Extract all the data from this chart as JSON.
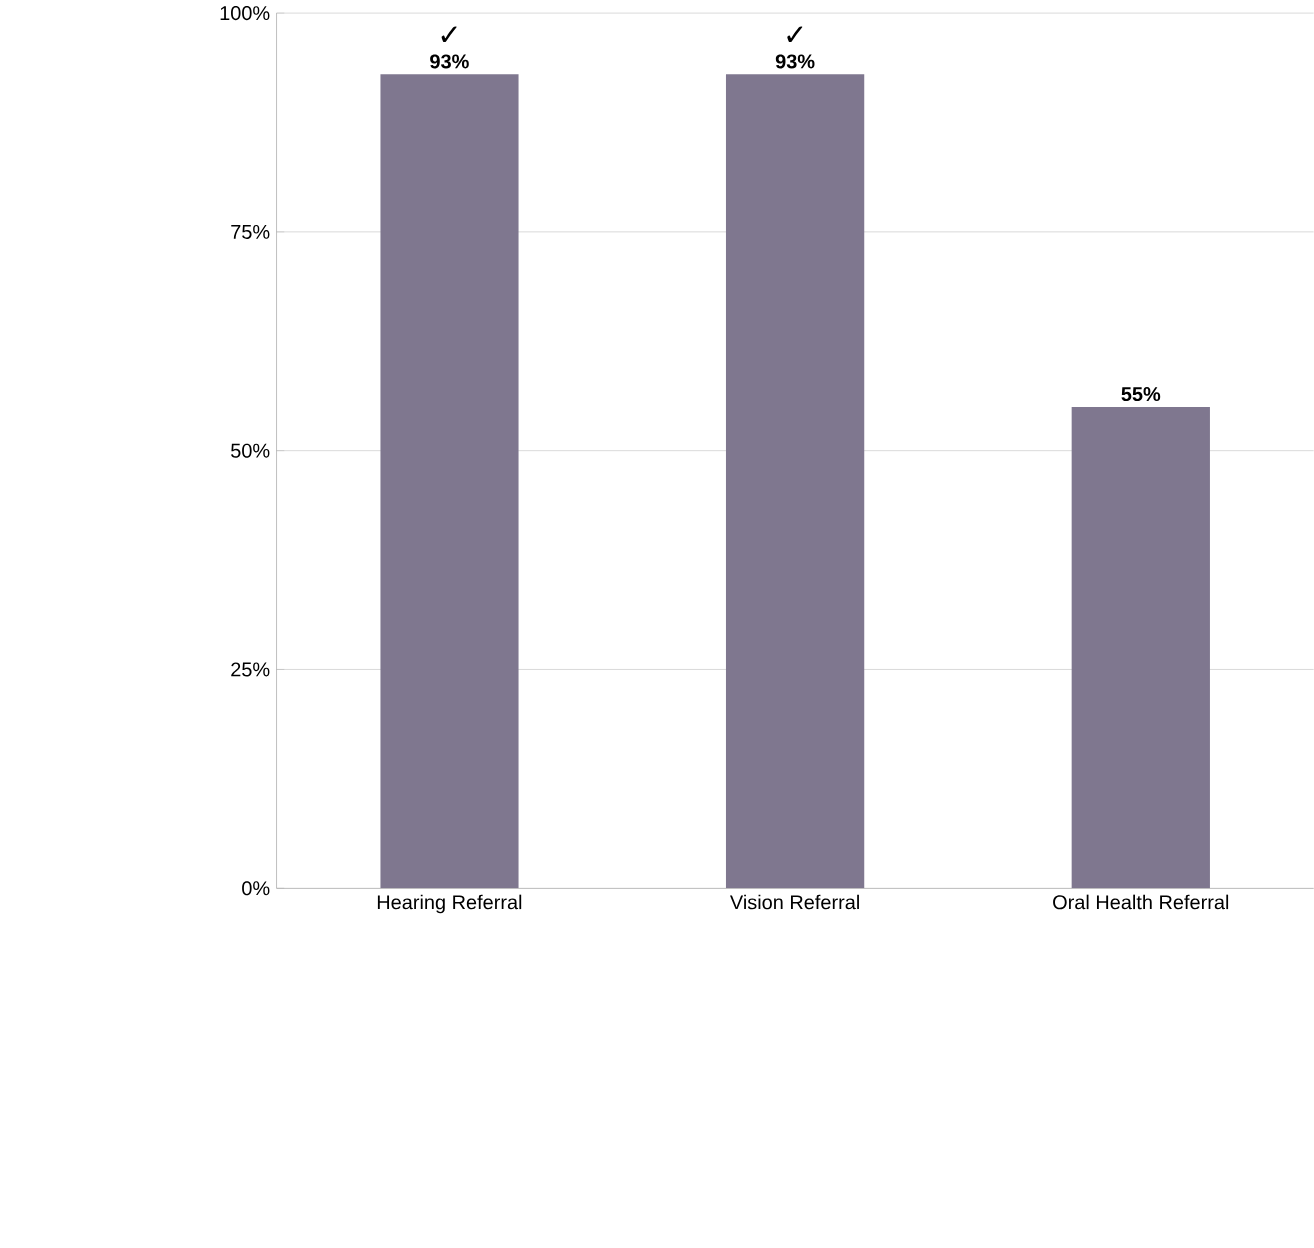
{
  "chart_data": {
    "type": "bar",
    "categories": [
      "Hearing Referral",
      "Vision Referral",
      "Oral Health Referral"
    ],
    "values": [
      93,
      93,
      55
    ],
    "color": "#7f778f",
    "value_labels": [
      "93%",
      "93%",
      "55%"
    ],
    "ylim": [
      0,
      100
    ],
    "yticks": [
      {
        "value": 0,
        "label": "0%"
      },
      {
        "value": 25,
        "label": "25%"
      },
      {
        "value": 50,
        "label": "50%"
      },
      {
        "value": 75,
        "label": "75%"
      },
      {
        "value": 100,
        "label": "100%"
      }
    ],
    "grid": "y",
    "annotations": [
      {
        "text": "✓",
        "x": "Hearing Referral",
        "y": 93
      },
      {
        "text": "✓",
        "x": "Vision Referral",
        "y": 93
      }
    ]
  }
}
